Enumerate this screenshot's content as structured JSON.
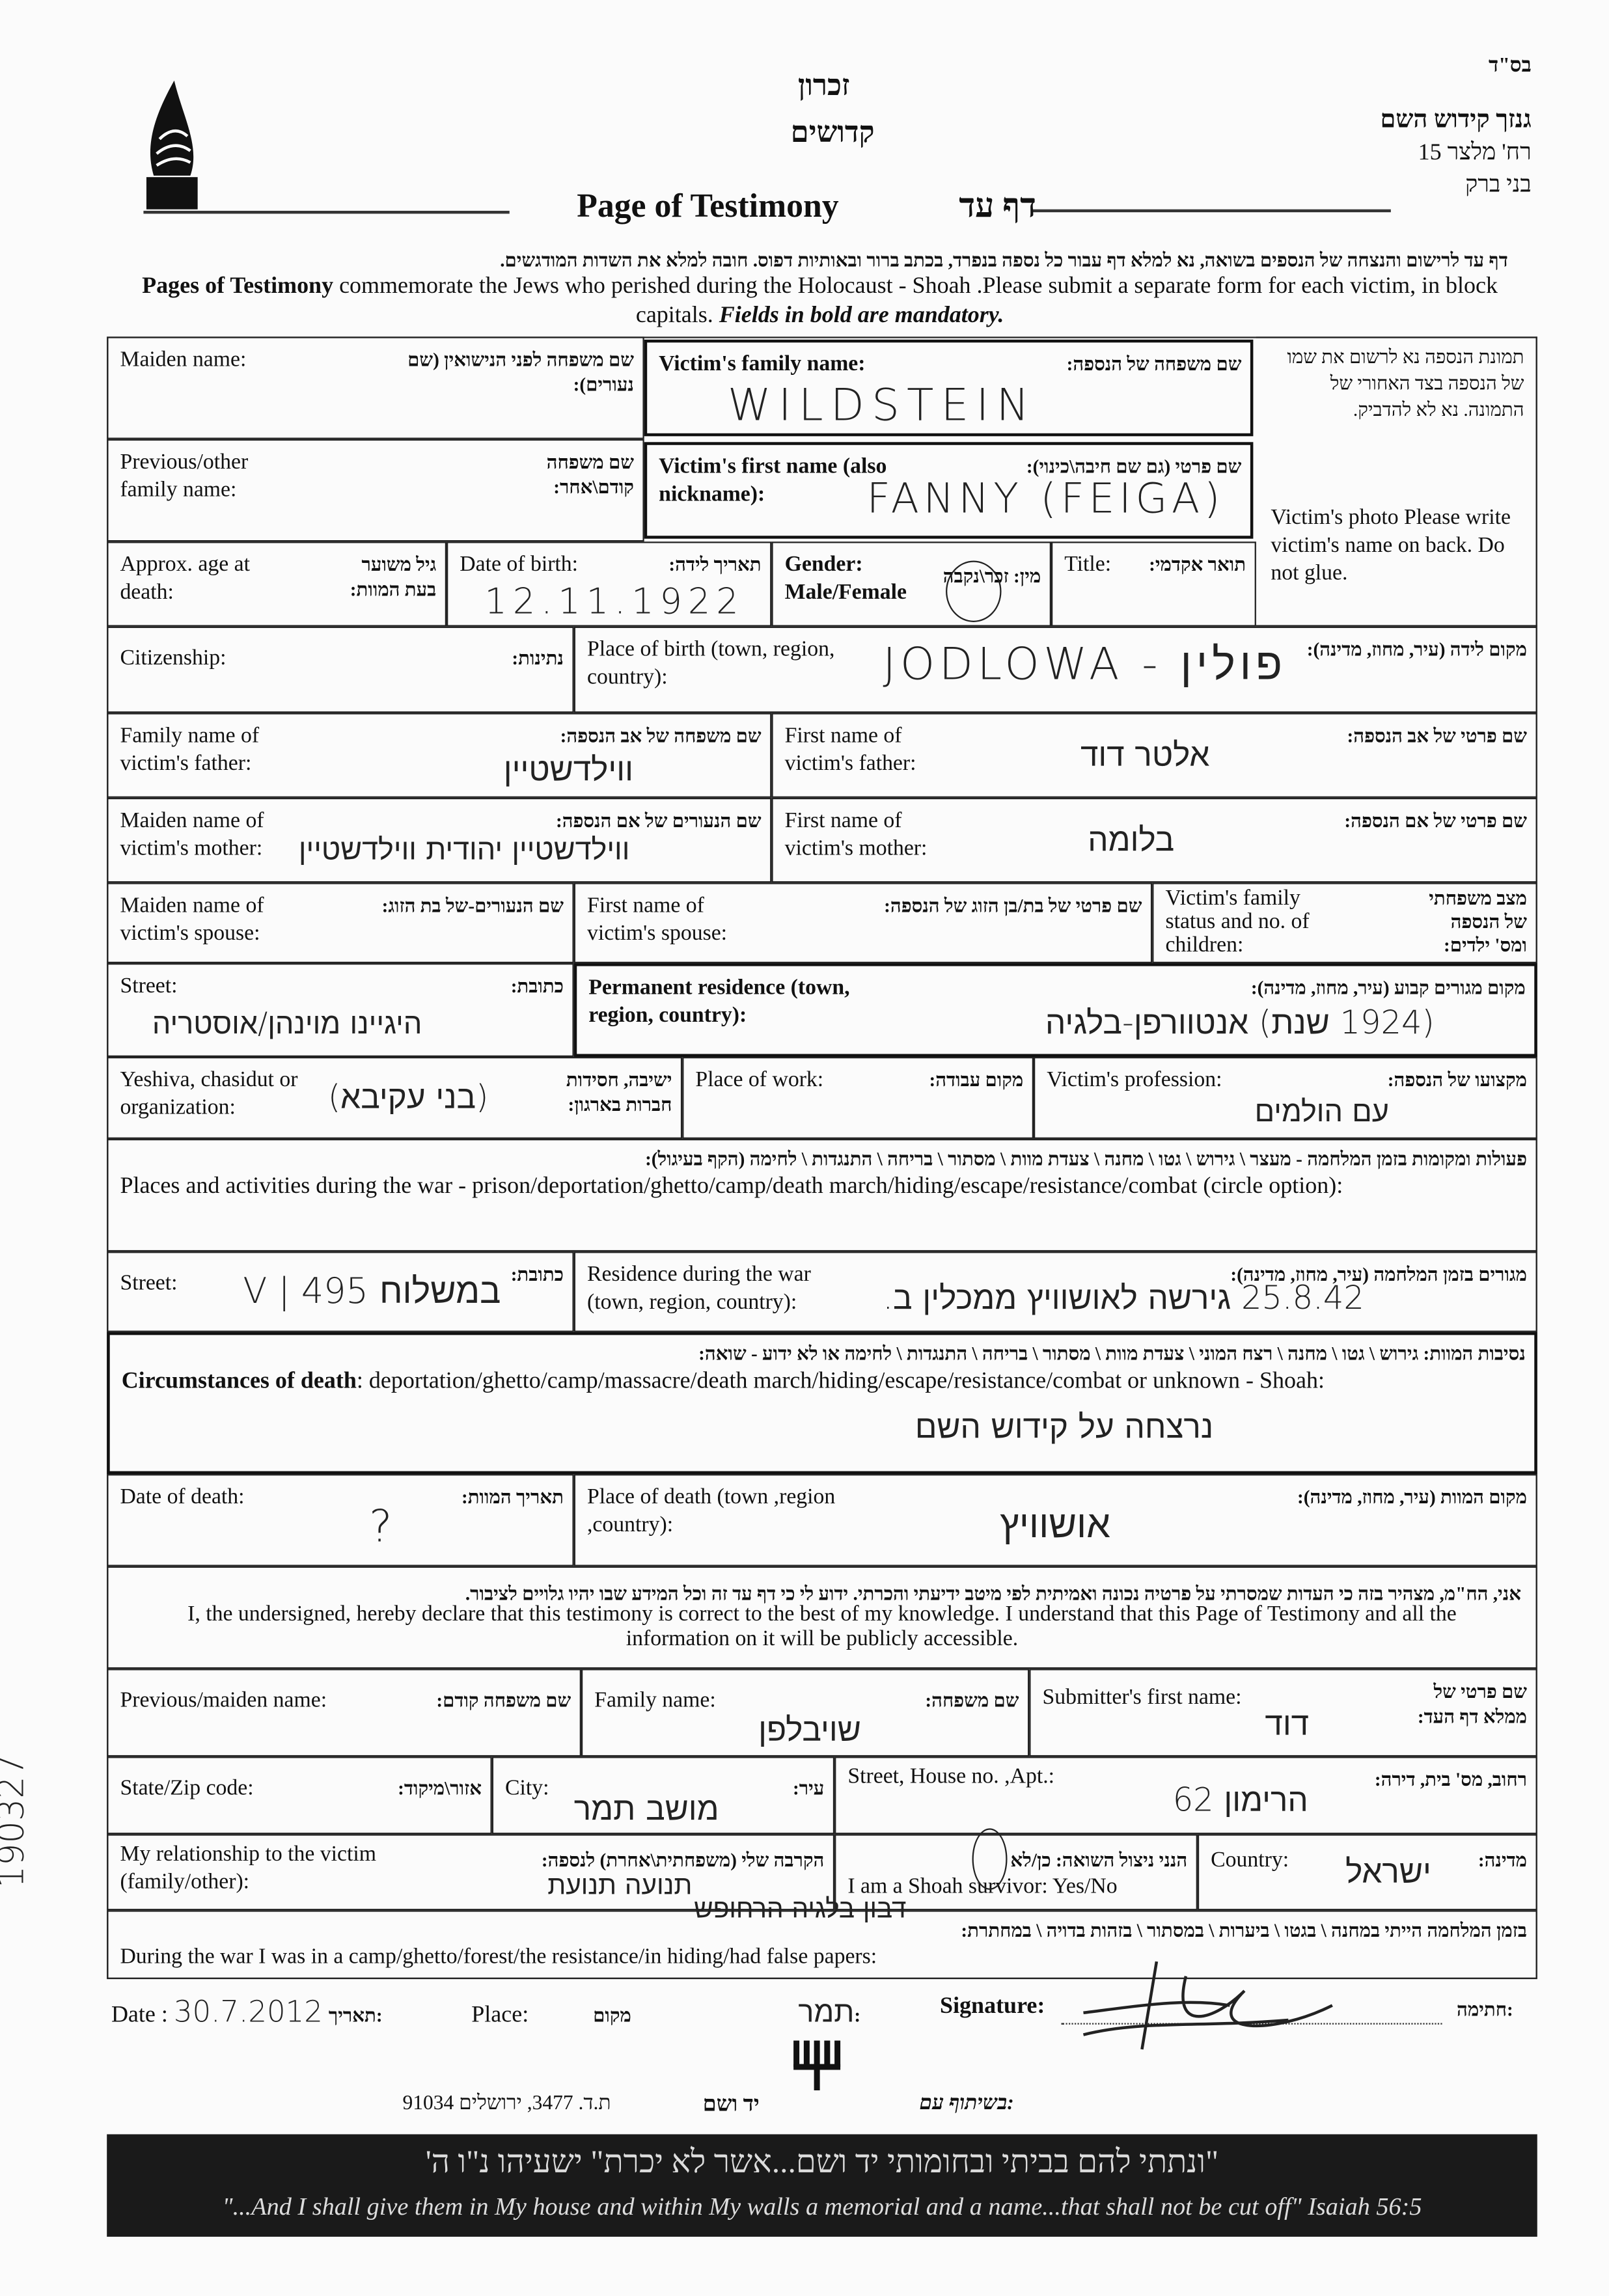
{
  "header": {
    "bsd": "בס\"ד",
    "org_name": "גנזך קידוש השם",
    "org_street": "רח' מלצר 15",
    "org_city": "בני ברק",
    "zikaron": "זכרון",
    "kedoshim": "קדושים",
    "title_en": "Page of Testimony",
    "title_he": "דף עד",
    "instructions_he": "דף עד לרישום והנצחה של הנספים בשואה, נא למלא דף עבור כל נספה בנפרד, בכתב ברור ובאותיות דפוס. חובה למלא את השדות המודגשים.",
    "instructions_en_bold": "Pages of Testimony",
    "instructions_en": " commemorate the Jews who perished during the Holocaust - Shoah .Please submit a separate form for each victim, in block capitals. ",
    "instructions_en_italic": "Fields in bold are mandatory."
  },
  "photo_box": {
    "he": "תמונת הנספה נא לרשום את שמו של הנספה בצד האחורי של התמונה. נא לא להדביק.",
    "en": "Victim's photo Please write victim's name on back. Do not glue."
  },
  "fields": {
    "maiden_name": {
      "en": "Maiden name:",
      "he": "שם משפחה לפני הנישואין (שם נעורים):"
    },
    "family_name": {
      "en": "Victim's family name:",
      "he": "שם משפחה של הנספה:",
      "value": "WILDSTEIN"
    },
    "prev_family": {
      "en": "Previous/other family name:",
      "he": "שם משפחה קודם\\אחר:"
    },
    "first_name": {
      "en": "Victim's first name (also nickname):",
      "he": "שם פרטי (גם שם חיבה\\כינוי):",
      "value": "FANNY (FEIGA)"
    },
    "age": {
      "en": "Approx. age at death:",
      "he": "גיל משוער בעת המוות:"
    },
    "dob": {
      "en": "Date of birth:",
      "he": "תאריך לידה:",
      "value": "12.11.1922"
    },
    "gender": {
      "en": "Gender: Male/Female",
      "he": "מין: זכר\\נקבה",
      "value": "נקבה"
    },
    "title": {
      "en": "Title:",
      "he": "תואר אקדמי:"
    },
    "citizenship": {
      "en": "Citizenship:",
      "he": "נתינות:"
    },
    "birthplace": {
      "en": "Place of birth (town, region, country):",
      "he": "מקום לידה (עיר, מחוז, מדינה):",
      "value": "JODLOWA - פולין"
    },
    "father_family": {
      "en": "Family name of victim's father:",
      "he": "שם משפחה של אב הנספה:",
      "value": "ווילדשטיין"
    },
    "father_first": {
      "en": "First name of victim's father:",
      "he": "שם פרטי של אב הנספה:",
      "value": "אלטר דוד"
    },
    "mother_maiden": {
      "en": "Maiden name of victim's mother:",
      "he": "שם הנעורים של אם הנספה:",
      "value": "ווילדשטיין יהודית ווילדשטיין"
    },
    "mother_first": {
      "en": "First name of victim's mother:",
      "he": "שם פרטי של אם הנספה:",
      "value": "בלומה"
    },
    "spouse_maiden": {
      "en": "Maiden name of victim's spouse:",
      "he": "שם הנעורים-של בת הזוג:"
    },
    "spouse_first": {
      "en": "First name of victim's spouse:",
      "he": "שם פרטי של בת/בן הזוג של הנספה:"
    },
    "family_status": {
      "en": "Victim's family status and no. of children:",
      "he": "מצב משפחתי של הנספה ומס' ילדים:"
    },
    "street1": {
      "en": "Street:",
      "he": "כתובת:",
      "value": "היגיינו מוינהן/אוסטריה"
    },
    "perm_res": {
      "en": "Permanent residence (town, region, country):",
      "he": "מקום מגורים קבוע (עיר, מחוז, מדינה):",
      "value": "(1924 שנת) אנטוורפן-בלגיה"
    },
    "yeshiva": {
      "en": "Yeshiva, chasidut or organization:",
      "he": "ישיבה, חסידות חברות בארגון:",
      "value": "(בני עקיבא)"
    },
    "work": {
      "en": "Place of work:",
      "he": "מקום עבודה:"
    },
    "profession": {
      "en": "Victim's profession:",
      "he": "מקצועו של הנספה:",
      "value": "עם הולמים"
    },
    "places_he": "פעולות ומקומות בזמן המלחמה - מעצר \\ גירוש \\ גטו \\ מחנה \\ צעדת מוות \\ מסתור \\ בריחה \\ התנגדות \\ לחימה (הקף בעיגול):",
    "places_en": "Places and activities during the war - prison/deportation/ghetto/camp/death march/hiding/escape/resistance/combat (circle option):",
    "street2": {
      "en": "Street:",
      "he": "כתובת:",
      "value": "V | 495 במשלוח"
    },
    "war_res": {
      "en": "Residence during the war (town, region, country):",
      "he": "מגורים בזמן המלחמה (עיר, מחוז, מדינה):",
      "value": "25.8.42 גירשה לאושוויץ ממכלין ב."
    },
    "circ_he": "נסיבות המוות: גירוש \\ גטו \\ מחנה \\ רצח המוני \\ צעדת מוות \\ מסתור \\ בריחה \\ התנגדות \\ לחימה או לא ידוע - שואה:",
    "circ_en_bold": "Circumstances of death",
    "circ_en": ": deportation/ghetto/camp/massacre/death march/hiding/escape/resistance/combat or unknown - Shoah:",
    "circ_value": "נרצחה על קידוש השם",
    "death_date": {
      "en": "Date of death:",
      "he": "תאריך המוות:",
      "value": "?"
    },
    "death_place": {
      "en": "Place of death (town ,region ,country):",
      "he": "מקום המוות (עיר, מחוז, מדינה):",
      "value": "אושוויץ"
    }
  },
  "declaration": {
    "he": "אני, הח\"מ, מצהיר בזה כי העדות שמסרתי על פרטיה נכונה ואמיתית לפי מיטב ידיעתי והכרתי. ידוע לי כי דף עד זה וכל המידע שבו יהיו גלויים לציבור.",
    "en": "I, the undersigned, hereby declare that this testimony is correct to the best of my knowledge. I understand that this Page of Testimony and all the information on it will be publicly accessible."
  },
  "submitter": {
    "prev_name": {
      "en": "Previous/maiden name:",
      "he": "שם משפחה קודם:"
    },
    "family": {
      "en": "Family name:",
      "he": "שם משפחה:",
      "value": "שויבלפן"
    },
    "first": {
      "en": "Submitter's first name:",
      "he": "שם פרטי של ממלא דף העד:",
      "value": "דוד"
    },
    "zip": {
      "en": "State/Zip code:",
      "he": "אזור\\מיקוד:"
    },
    "city": {
      "en": "City:",
      "he": "עיר:",
      "value": "מושב תמר"
    },
    "street": {
      "en": "Street, House no. ,Apt.:",
      "he": "רחוב, מס' בית, דירה:",
      "value": "הרימון 62"
    },
    "relation": {
      "en": "My relationship to the victim (family/other):",
      "he": "הקרבה שלי (משפחתית\\אחרת) לנספה:",
      "value": "תנועה תנועת"
    },
    "survivor": {
      "en": "I am a Shoah survivor:  Yes/No",
      "he": "הנני ניצול השואה: כן/לא",
      "value": "כן"
    },
    "country": {
      "en": "Country:",
      "he": "מדינה:",
      "value": "ישראל"
    },
    "war": {
      "en": "During the war I was in a camp/ghetto/forest/the resistance/in hiding/had false papers:",
      "he": "בזמן המלחמה הייתי במחנה \\ בגטו \\ ביערות \\ במסתור \\ בזהות בדויה \\ במחתרת:",
      "value": "דבון בלגיה הרחופש"
    }
  },
  "footer": {
    "date_label": "Date :",
    "date_he": "תאריך:",
    "date_value": "30.7.2012",
    "place_label": "Place:",
    "place_he": "מקום:",
    "place_value": "תמר",
    "sig_label": "Signature:",
    "sig_he": "חתימה:",
    "partner_he": "בשיתוף עם:",
    "yad_vashem": "יד ושם",
    "address": "ת.ד. 3477, ירושלים 91034",
    "banner_he": "\"ונתתי להם בביתי ובחומותי יד ושם...אשר לא יכרת\" ישעיהו נ\"ו ה'",
    "banner_en": "\"...And I shall give them in My house and within My walls a memorial and a name...that shall not be cut off\" Isaiah 56:5",
    "margin_number": "190327"
  },
  "colors": {
    "ink": "#111111",
    "paper": "#fbfbfb",
    "banner": "#1a1a1a"
  }
}
